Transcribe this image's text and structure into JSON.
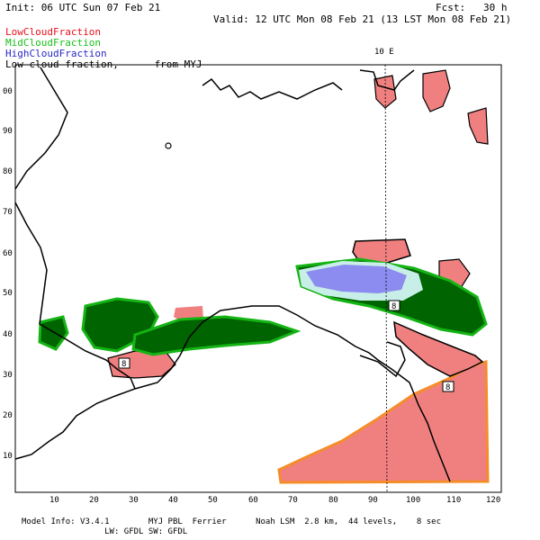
{
  "header": {
    "init": "Init: 06 UTC Sun 07 Feb 21",
    "fcst": "Fcst:   30 h",
    "valid": "Valid: 12 UTC Mon 08 Feb 21 (13 LST Mon 08 Feb 21)"
  },
  "legend": {
    "items": [
      {
        "label": "LowCloudFraction",
        "color": "#e8101c"
      },
      {
        "label": "MidCloudFraction",
        "color": "#18c018"
      },
      {
        "label": "HighCloudFraction",
        "color": "#2828c8"
      }
    ],
    "caption": "Low cloud fraction,      from MYJ"
  },
  "map_top_label": "10 E",
  "axes": {
    "x_ticks": [
      "10",
      "20",
      "30",
      "40",
      "50",
      "60",
      "70",
      "80",
      "90",
      "100",
      "110",
      "120"
    ],
    "y_ticks": [
      "10",
      "20",
      "30",
      "40",
      "50",
      "60",
      "70",
      "80",
      "90",
      "00"
    ]
  },
  "markers": [
    "8",
    "8",
    "8"
  ],
  "footer": {
    "line1": "Model Info: V3.4.1        MYJ PBL  Ferrier      Noah LSM  2.8 km,  44 levels,    8 sec",
    "line2": "                 LW: GFDL SW: GFDL"
  },
  "colors": {
    "low": "#f08080",
    "low_edge": "#f58c2a",
    "mid_dark": "#006400",
    "mid_light": "#14b414",
    "high": "#8c8cf0",
    "high_halo": "#c8eee8"
  }
}
